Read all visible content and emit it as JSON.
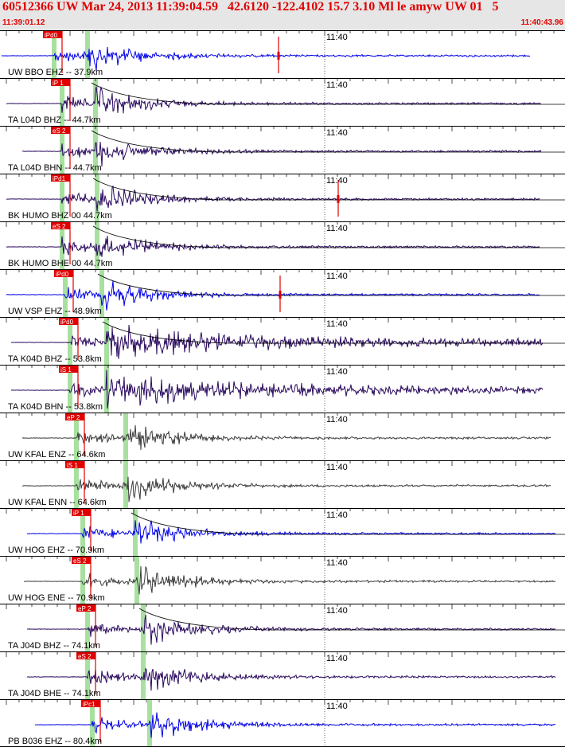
{
  "header": {
    "title": "60512366 UW Mar 24, 2013 11:39:04.59   42.6120 -122.4102 15.7 3.10 Ml le amyw UW 01   5",
    "start_time": "11:39:01.12",
    "end_time": "11:40:43.96"
  },
  "minute_label": "11:40",
  "colors": {
    "blue": "#0000e6",
    "navy": "#2a0a5e",
    "gray": "#3c3c3c",
    "pick": "#e00000",
    "window": "#a8e0a0",
    "header_bg": "#e6e6e6",
    "title": "#e00000"
  },
  "traces": [
    {
      "label": "UW BBO EHZ -- 37.9km",
      "pick": "iPd0",
      "color": "blue"
    },
    {
      "label": "TA L04D BHZ -- 44.7km",
      "pick": "iP 1",
      "color": "navy"
    },
    {
      "label": "TA L04D BHN -- 44.7km",
      "pick": "eS 2",
      "color": "navy"
    },
    {
      "label": "BK HUMO BHZ 00 44.7km",
      "pick": "iPd1",
      "color": "navy"
    },
    {
      "label": "BK HUMO BHE 00 44.7km",
      "pick": "eS 2",
      "color": "navy"
    },
    {
      "label": "UW VSP EHZ -- 48.9km",
      "pick": "iPd0",
      "color": "blue"
    },
    {
      "label": "TA K04D BHZ -- 53.8km",
      "pick": "iPd0",
      "color": "navy"
    },
    {
      "label": "TA K04D BHN -- 53.8km",
      "pick": "iS 1",
      "color": "navy"
    },
    {
      "label": "UW KFAL ENZ -- 64.6km",
      "pick": "eP 2",
      "color": "gray"
    },
    {
      "label": "UW KFAL ENN -- 64.6km",
      "pick": "iS 1",
      "color": "gray"
    },
    {
      "label": "UW HOG EHZ -- 70.9km",
      "pick": "iP 1",
      "color": "blue"
    },
    {
      "label": "UW HOG ENE -- 70.9km",
      "pick": "eS 2",
      "color": "gray"
    },
    {
      "label": "TA J04D BHZ -- 74.1km",
      "pick": "eP 2",
      "color": "navy"
    },
    {
      "label": "TA J04D BHE -- 74.1km",
      "pick": "eS 2",
      "color": "navy"
    },
    {
      "label": "PB B036 EHZ -- 80.4km",
      "pick": "iPc1",
      "color": "blue"
    }
  ]
}
